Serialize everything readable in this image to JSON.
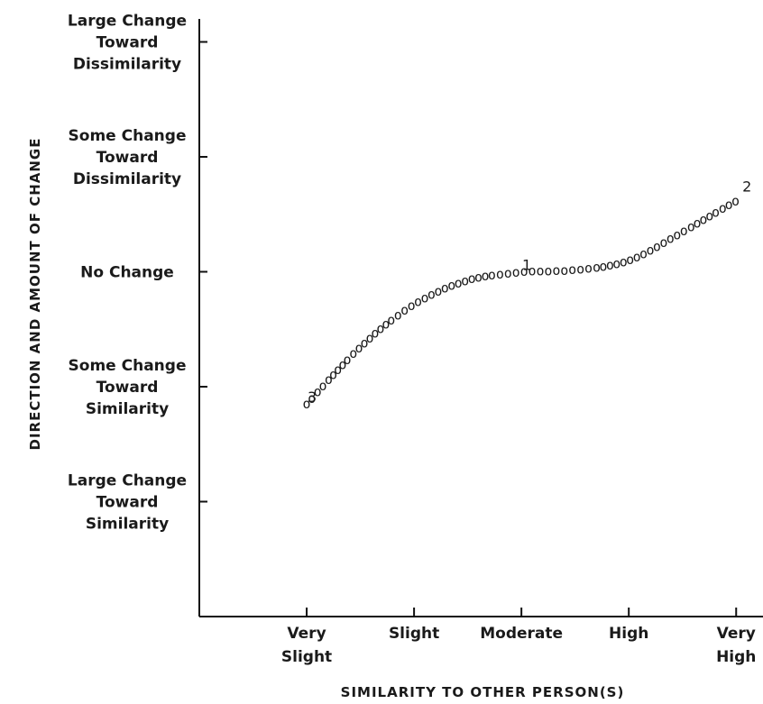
{
  "chart_data": {
    "type": "line",
    "title": "",
    "xlabel": "SIMILARITY TO OTHER PERSON(S)",
    "ylabel": "DIRECTION AND AMOUNT OF CHANGE",
    "x_categories": [
      [
        "Very",
        "Slight"
      ],
      [
        "Slight"
      ],
      [
        "Moderate"
      ],
      [
        "High"
      ],
      [
        "Very",
        "High"
      ]
    ],
    "y_categories": [
      [
        "Large Change",
        "Toward",
        "Dissimilarity"
      ],
      [
        "Some Change",
        "Toward",
        "Dissimilarity"
      ],
      [
        "No Change"
      ],
      [
        "Some Change",
        "Toward",
        "Similarity"
      ],
      [
        "Large Change",
        "Toward",
        "Similarity"
      ]
    ],
    "x_scale": "ordinal, 1 = Very Slight ... 5 = Very High",
    "y_scale": "ordinal, +2 = Large Change Toward Dissimilarity, 0 = No Change, -2 = Large Change Toward Similarity",
    "xlim": [
      0,
      5.25
    ],
    "ylim": [
      -3,
      2.2
    ],
    "series": [
      {
        "points": [
          {
            "x": 1.0,
            "y": -1.15
          },
          {
            "x": 1.5,
            "y": -0.65
          },
          {
            "x": 2.0,
            "y": -0.28
          },
          {
            "x": 2.5,
            "y": -0.07
          },
          {
            "x": 3.0,
            "y": 0.0
          },
          {
            "x": 3.5,
            "y": 0.02
          },
          {
            "x": 4.0,
            "y": 0.1
          },
          {
            "x": 4.5,
            "y": 0.35
          },
          {
            "x": 5.0,
            "y": 0.62
          }
        ],
        "point_labels": [
          {
            "text": "3",
            "x": 1.0,
            "y": -1.15
          },
          {
            "text": "1",
            "x": 3.0,
            "y": 0.0
          },
          {
            "text": "2",
            "x": 5.0,
            "y": 0.62
          }
        ]
      }
    ],
    "grid": false,
    "legend": "none"
  }
}
